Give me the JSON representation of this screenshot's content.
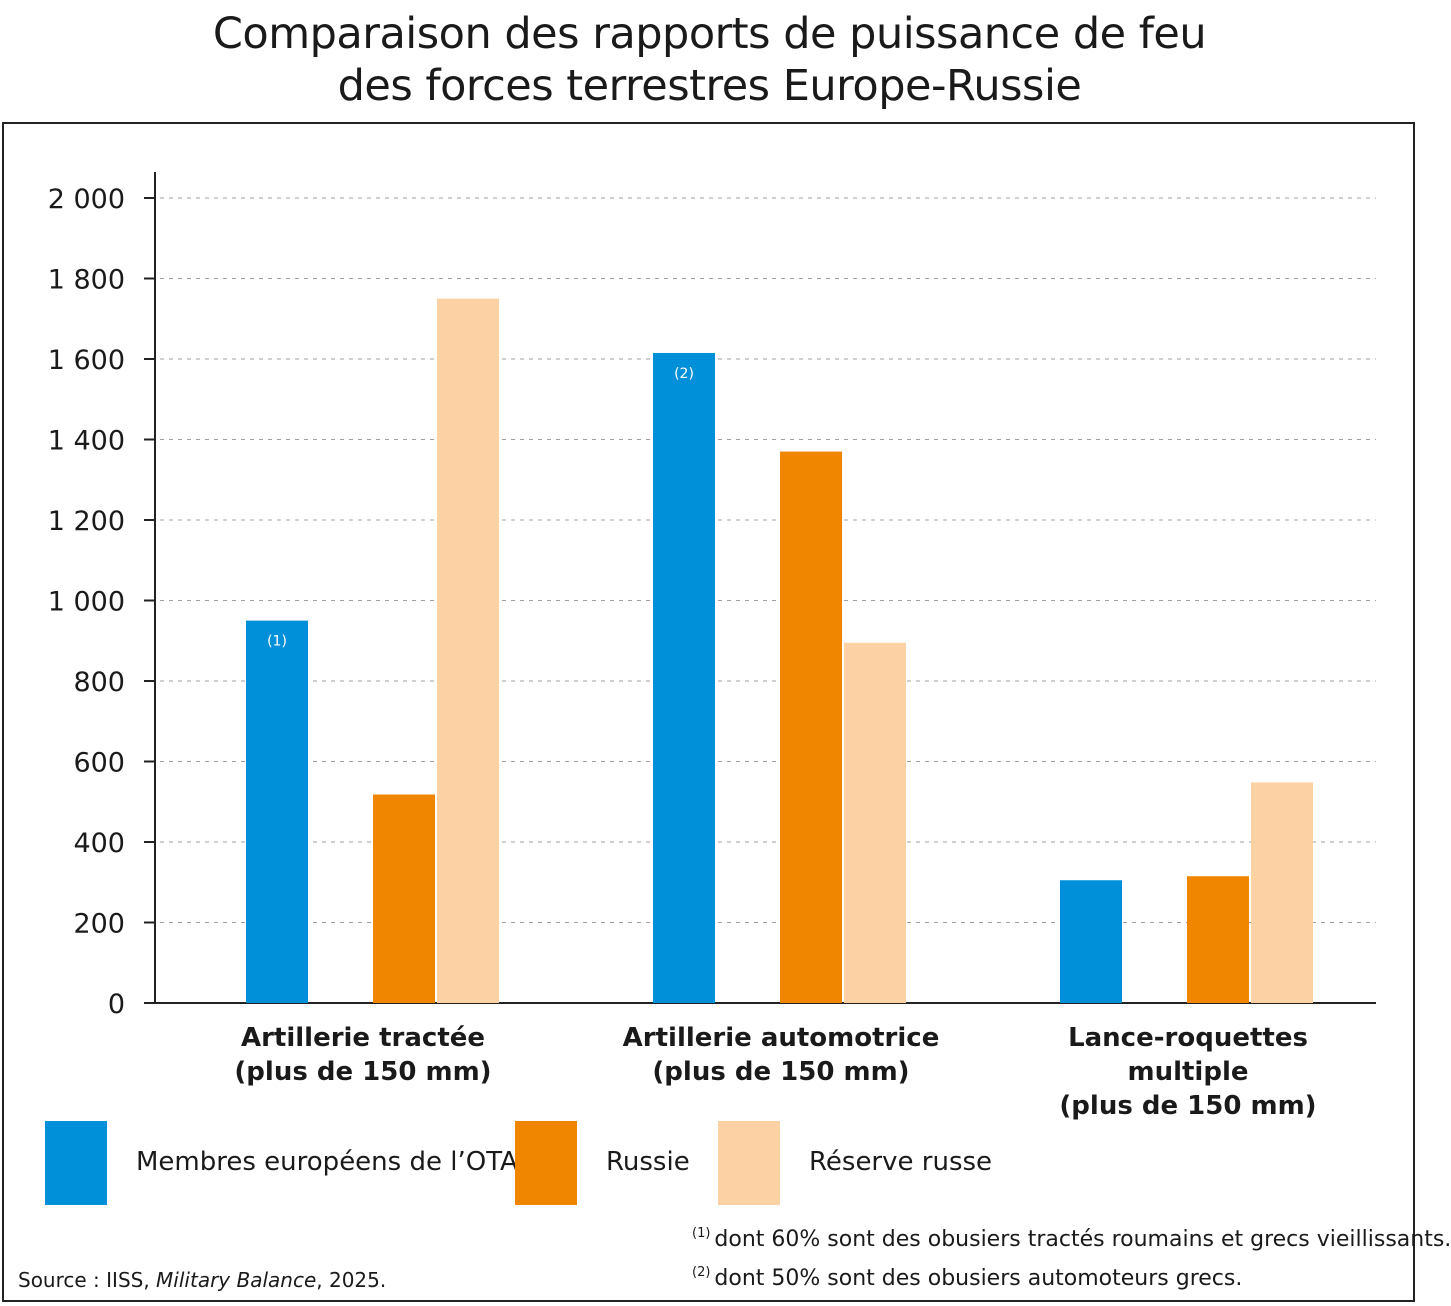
{
  "title_line1": "Comparaison des rapports de puissance de feu",
  "title_line2": "des forces terrestres Europe-Russie",
  "chart_data": {
    "type": "bar",
    "title": "Comparaison des rapports de puissance de feu des forces terrestres Europe-Russie",
    "categories": [
      [
        "Artillerie tractée",
        "(plus de 150 mm)"
      ],
      [
        "Artillerie automotrice",
        "(plus de 150 mm)"
      ],
      [
        "Lance-roquettes",
        "multiple",
        "(plus de 150 mm)"
      ]
    ],
    "series": [
      {
        "name": "Membres européens de l’OTAN",
        "color": "#0090D9",
        "values": [
          950,
          1615,
          305
        ],
        "notes": [
          "(1)",
          "(2)",
          ""
        ]
      },
      {
        "name": "Russie",
        "color": "#F08500",
        "values": [
          518,
          1370,
          315
        ],
        "notes": [
          "",
          "",
          ""
        ]
      },
      {
        "name": "Réserve russe",
        "color": "#FCD1A3",
        "values": [
          1750,
          895,
          548
        ],
        "notes": [
          "",
          "",
          ""
        ]
      }
    ],
    "yticks": [
      {
        "value": 0,
        "label": "0"
      },
      {
        "value": 200,
        "label": "200"
      },
      {
        "value": 400,
        "label": "400"
      },
      {
        "value": 600,
        "label": "600"
      },
      {
        "value": 800,
        "label": "800"
      },
      {
        "value": 1000,
        "label": "1 000"
      },
      {
        "value": 1200,
        "label": "1 200"
      },
      {
        "value": 1400,
        "label": "1 400"
      },
      {
        "value": 1600,
        "label": "1 600"
      },
      {
        "value": 1800,
        "label": "1 800"
      },
      {
        "value": 2000,
        "label": "2 000"
      }
    ],
    "ylim": [
      0,
      2000
    ],
    "grid": true,
    "legend_position": "bottom"
  },
  "footnotes": [
    {
      "marker": "(1)",
      "text": "dont 60% sont des obusiers tractés roumains et grecs vieillissants."
    },
    {
      "marker": "(2)",
      "text": "dont 50% sont des obusiers automoteurs grecs."
    }
  ],
  "source_prefix": "Source : IISS, ",
  "source_italic": "Military Balance",
  "source_suffix": ", 2025."
}
